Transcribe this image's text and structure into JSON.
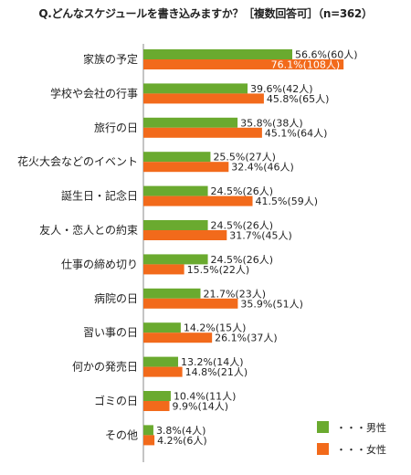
{
  "chart_data": {
    "type": "bar",
    "title": "Q.どんなスケジュールを書き込みますか？［複数回答可］（n=362）",
    "categories": [
      "家族の予定",
      "学校や会社の行事",
      "旅行の日",
      "花火大会などのイベント",
      "誕生日・記念日",
      "友人・恋人との約束",
      "仕事の締め切り",
      "病院の日",
      "習い事の日",
      "何かの発売日",
      "ゴミの日",
      "その他"
    ],
    "series": [
      {
        "name": "・・・男性",
        "color": "#6aaa2f",
        "values": [
          56.6,
          39.6,
          35.8,
          25.5,
          24.5,
          24.5,
          24.5,
          21.7,
          14.2,
          13.2,
          10.4,
          3.8
        ],
        "labels": [
          "56.6%(60人)",
          "39.6%(42人)",
          "35.8%(38人)",
          "25.5%(27人)",
          "24.5%(26人)",
          "24.5%(26人)",
          "24.5%(26人)",
          "21.7%(23人)",
          "14.2%(15人)",
          "13.2%(14人)",
          "10.4%(11人)",
          "3.8%(4人)"
        ]
      },
      {
        "name": "・・・女性",
        "color": "#f26a1b",
        "values": [
          76.1,
          45.8,
          45.1,
          32.4,
          41.5,
          31.7,
          15.5,
          35.9,
          26.1,
          14.8,
          9.9,
          4.2
        ],
        "labels": [
          "76.1%(108人)",
          "45.8%(65人)",
          "45.1%(64人)",
          "32.4%(46人)",
          "41.5%(59人)",
          "31.7%(45人)",
          "15.5%(22人)",
          "35.9%(51人)",
          "26.1%(37人)",
          "14.8%(21人)",
          "9.9%(14人)",
          "4.2%(6人)"
        ]
      }
    ],
    "xlim": [
      0,
      100
    ],
    "legend_position": "bottom-right",
    "grid": false
  }
}
